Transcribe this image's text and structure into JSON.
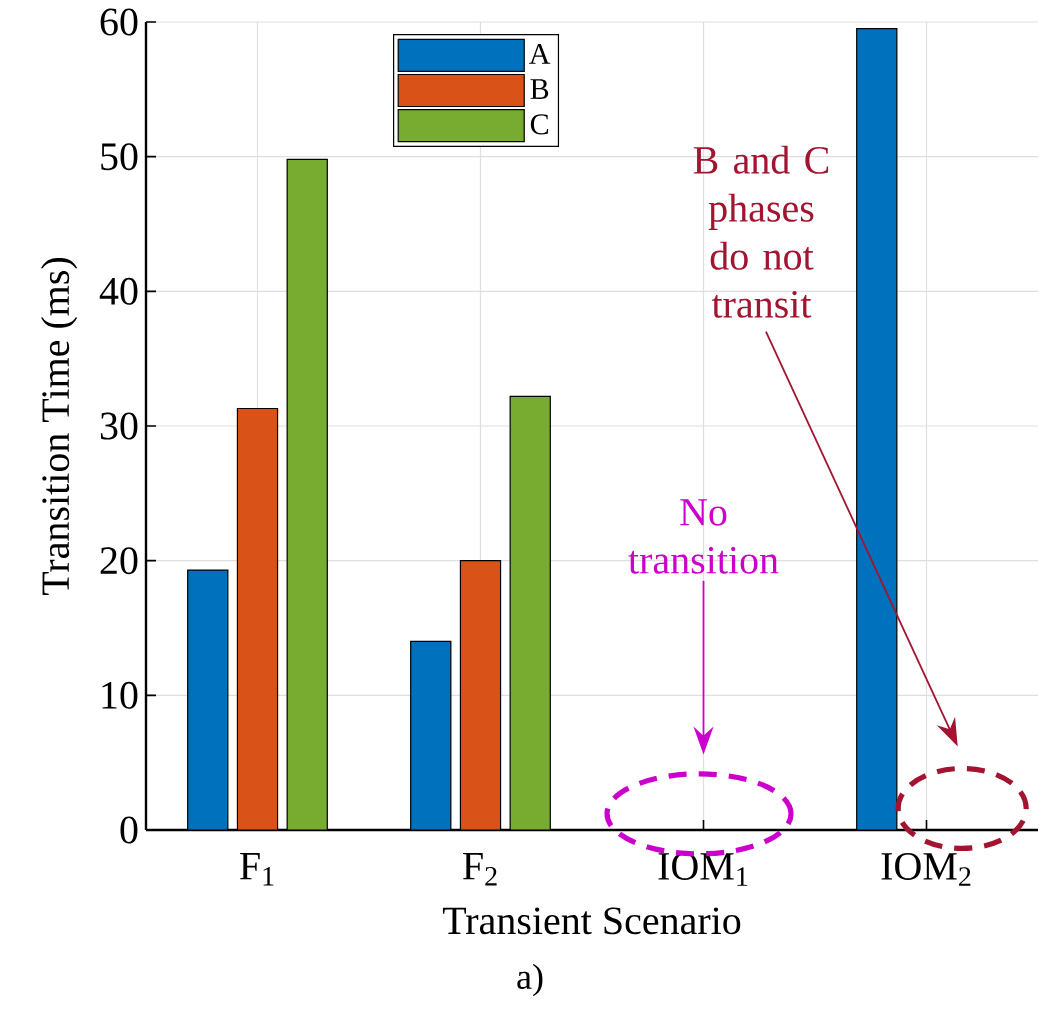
{
  "chart_data": {
    "type": "bar",
    "xlabel": "Transient Scenario",
    "ylabel": "Transition Time (ms)",
    "categories": [
      "F$_{1}$",
      "F$_{2}$",
      "IOM$_{1}$",
      "IOM$_{2}$"
    ],
    "series": [
      {
        "name": "A",
        "color": "#0072bd",
        "values": [
          19.3,
          14,
          null,
          59.5
        ]
      },
      {
        "name": "B",
        "color": "#d95319",
        "values": [
          31.3,
          20,
          null,
          null
        ]
      },
      {
        "name": "C",
        "color": "#77ac30",
        "values": [
          49.8,
          32.2,
          null,
          null
        ]
      }
    ],
    "ylim": [
      0,
      60
    ],
    "yticks": [
      0,
      10,
      20,
      30,
      40,
      50,
      60
    ],
    "grid": true,
    "legend": "top",
    "annotations": [
      "No transition",
      "B and C phases do not transit",
      "a)"
    ]
  }
}
